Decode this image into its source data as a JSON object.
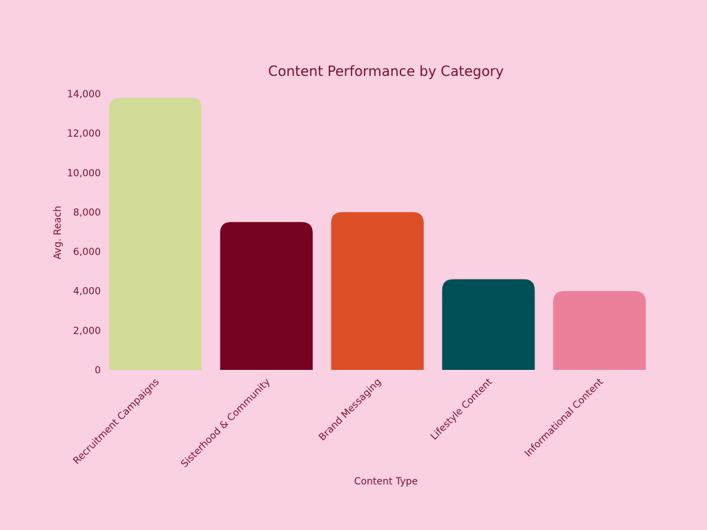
{
  "background_color": "#f9d1e2",
  "text_color": "#7a0e2e",
  "chart_data": {
    "type": "bar",
    "title": "Content Performance by Category",
    "xlabel": "Content Type",
    "ylabel": "Avg. Reach",
    "categories": [
      "Recruitment Campaigns",
      "Sisterhood & Community",
      "Brand Messaging",
      "Lifestyle Content",
      "Informational Content"
    ],
    "values": [
      13800,
      7500,
      8000,
      4600,
      4000
    ],
    "colors": [
      "#d2db97",
      "#760322",
      "#dd4f27",
      "#004f56",
      "#ec809a"
    ],
    "ylim": [
      0,
      14000
    ],
    "yticks": [
      0,
      2000,
      4000,
      6000,
      8000,
      10000,
      12000,
      14000
    ],
    "ytick_labels": [
      "0",
      "2,000",
      "4,000",
      "6,000",
      "8,000",
      "10,000",
      "12,000",
      "14,000"
    ],
    "grid": false,
    "legend": "none"
  }
}
